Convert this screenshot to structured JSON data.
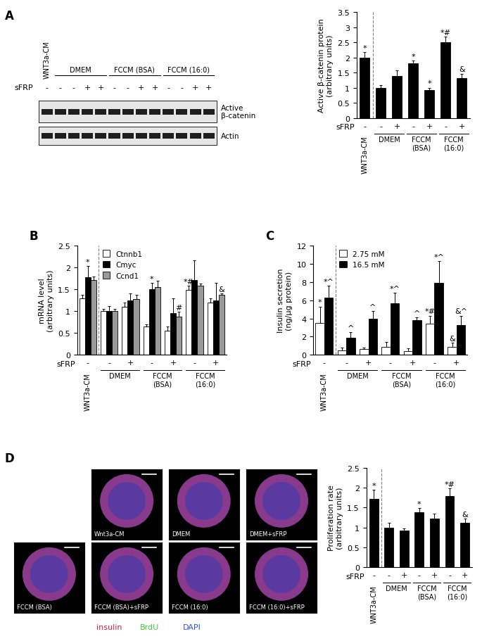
{
  "chart_data": [
    {
      "panel": "A",
      "type": "bar",
      "categories": [
        "-",
        "-",
        "+",
        "-",
        "+",
        "-",
        "+"
      ],
      "row_label": "sFRP",
      "groups": [
        {
          "label": "WNT3a-CM",
          "span": [
            0,
            0
          ]
        },
        {
          "label": "DMEM",
          "span": [
            1,
            2
          ]
        },
        {
          "label": "FCCM\n(BSA)",
          "span": [
            3,
            4
          ]
        },
        {
          "label": "FCCM\n(16:0)",
          "span": [
            5,
            6
          ]
        }
      ],
      "y_label": "Active β-catenin protein\n(arbitrary units)",
      "ylim": [
        0,
        3.5
      ],
      "yticks": [
        0,
        0.5,
        1,
        1.5,
        2,
        2.5,
        3,
        3.5
      ],
      "series": [
        {
          "color": "#000000",
          "values": [
            2.0,
            1.0,
            1.4,
            1.8,
            0.92,
            2.5,
            1.32
          ],
          "errors": [
            0.18,
            0.08,
            0.18,
            0.1,
            0.08,
            0.18,
            0.15
          ],
          "marks": [
            "*",
            null,
            null,
            "*",
            "*",
            "*#",
            "&"
          ]
        }
      ]
    },
    {
      "panel": "B",
      "type": "bar",
      "categories": [
        "-",
        "-",
        "+",
        "-",
        "+",
        "-",
        "+"
      ],
      "row_label": "sFRP",
      "groups": [
        {
          "label": "WNT3a-CM",
          "span": [
            0,
            0
          ]
        },
        {
          "label": "DMEM",
          "span": [
            1,
            2
          ]
        },
        {
          "label": "FCCM\n(BSA)",
          "span": [
            3,
            4
          ]
        },
        {
          "label": "FCCM\n(16:0)",
          "span": [
            5,
            6
          ]
        }
      ],
      "y_label": "mRNA level\n(arbitrary units)",
      "ylim": [
        0,
        2.5
      ],
      "yticks": [
        0,
        0.5,
        1,
        1.5,
        2,
        2.5
      ],
      "legend": "upper left",
      "series": [
        {
          "name": "Ctnnb1",
          "color": "#ffffff",
          "values": [
            1.3,
            1.0,
            1.1,
            0.65,
            0.55,
            1.48,
            1.2
          ],
          "errors": [
            0.08,
            0.06,
            0.1,
            0.04,
            0.1,
            0.1,
            0.1
          ],
          "marks": [
            null,
            null,
            null,
            null,
            null,
            "*#",
            null
          ]
        },
        {
          "name": "Cmyc",
          "color": "#000000",
          "values": [
            1.78,
            1.0,
            1.25,
            1.5,
            0.95,
            1.72,
            1.25
          ],
          "errors": [
            0.25,
            0.12,
            0.15,
            0.15,
            0.35,
            0.45,
            0.4
          ],
          "marks": [
            "*",
            null,
            null,
            "*",
            null,
            null,
            null
          ]
        },
        {
          "name": "Ccnd1",
          "color": "#999999",
          "values": [
            1.72,
            1.0,
            1.27,
            1.55,
            0.88,
            1.58,
            1.37
          ],
          "errors": [
            0.08,
            0.06,
            0.1,
            0.15,
            0.1,
            0.05,
            0.03
          ],
          "marks": [
            null,
            null,
            null,
            null,
            "#",
            null,
            "&"
          ]
        }
      ]
    },
    {
      "panel": "C",
      "type": "bar",
      "categories": [
        "-",
        "-",
        "+",
        "-",
        "+",
        "-",
        "+"
      ],
      "row_label": "sFRP",
      "groups": [
        {
          "label": "WNT3a-CM",
          "span": [
            0,
            0
          ]
        },
        {
          "label": "DMEM",
          "span": [
            1,
            2
          ]
        },
        {
          "label": "FCCM\n(BSA)",
          "span": [
            3,
            4
          ]
        },
        {
          "label": "FCCM\n(16:0)",
          "span": [
            5,
            6
          ]
        }
      ],
      "y_label": "Insulin secretion\n(ng/μg protein)",
      "ylim": [
        0,
        12
      ],
      "yticks": [
        0,
        2,
        4,
        6,
        8,
        10,
        12
      ],
      "legend": "upper left",
      "series": [
        {
          "name": "2.75 mM",
          "color": "#ffffff",
          "values": [
            3.5,
            0.5,
            0.6,
            0.9,
            0.4,
            3.4,
            0.9
          ],
          "errors": [
            1.8,
            0.3,
            0.2,
            0.5,
            0.3,
            0.9,
            0.4
          ],
          "marks": [
            "*",
            null,
            null,
            null,
            null,
            "*#",
            "&"
          ]
        },
        {
          "name": "16.5 mM",
          "color": "#000000",
          "values": [
            6.3,
            1.9,
            4.0,
            5.7,
            3.8,
            7.9,
            3.3
          ],
          "errors": [
            1.3,
            0.6,
            0.8,
            1.1,
            0.3,
            2.4,
            1.0
          ],
          "marks": [
            "*^",
            "^",
            "^",
            "*^",
            "^",
            "*^",
            "&^"
          ]
        }
      ]
    },
    {
      "panel": "D",
      "type": "bar",
      "categories": [
        "-",
        "-",
        "+",
        "-",
        "+",
        "-",
        "+"
      ],
      "row_label": "sFRP",
      "groups": [
        {
          "label": "WNT3a-CM",
          "span": [
            0,
            0
          ]
        },
        {
          "label": "DMEM",
          "span": [
            1,
            2
          ]
        },
        {
          "label": "FCCM\n(BSA)",
          "span": [
            3,
            4
          ]
        },
        {
          "label": "FCCM\n(16:0)",
          "span": [
            5,
            6
          ]
        }
      ],
      "y_label": "Proliferation rate\n(arbitrary units)",
      "ylim": [
        0,
        2.5
      ],
      "yticks": [
        0,
        0.5,
        1,
        1.5,
        2,
        2.5
      ],
      "series": [
        {
          "color": "#000000",
          "values": [
            1.72,
            1.0,
            0.92,
            1.38,
            1.22,
            1.78,
            1.12
          ],
          "errors": [
            0.22,
            0.12,
            0.06,
            0.1,
            0.12,
            0.2,
            0.1
          ],
          "marks": [
            "*",
            null,
            null,
            "*",
            null,
            "*#",
            "&"
          ]
        }
      ]
    }
  ],
  "blot": {
    "row_label": "sFRP",
    "sFRP": [
      "-",
      "-",
      "-",
      "+",
      "+",
      "-",
      "-",
      "+",
      "+",
      "-",
      "-",
      "+",
      "+"
    ],
    "groups": [
      {
        "label": "WNT3a-CM",
        "span": [
          0,
          0
        ]
      },
      {
        "label": "DMEM",
        "span": [
          1,
          4
        ]
      },
      {
        "label": "FCCM (BSA)",
        "span": [
          5,
          8
        ]
      },
      {
        "label": "FCCM (16:0)",
        "span": [
          9,
          12
        ]
      }
    ],
    "bands": [
      "Active\nβ-catenin",
      "Actin"
    ]
  },
  "micrographs": {
    "panels": [
      "Wnt3a-CM",
      "DMEM",
      "DMEM+sFRP",
      "FCCM (BSA)",
      "FCCM (BSA)+sFRP",
      "FCCM (16:0)",
      "FCCM (16:0)+sFRP"
    ],
    "stains": [
      {
        "label": "insulin",
        "color": "#e0204a"
      },
      {
        "label": "BrdU",
        "color": "#3cc83c"
      },
      {
        "label": "DAPI",
        "color": "#3050e0"
      }
    ]
  }
}
